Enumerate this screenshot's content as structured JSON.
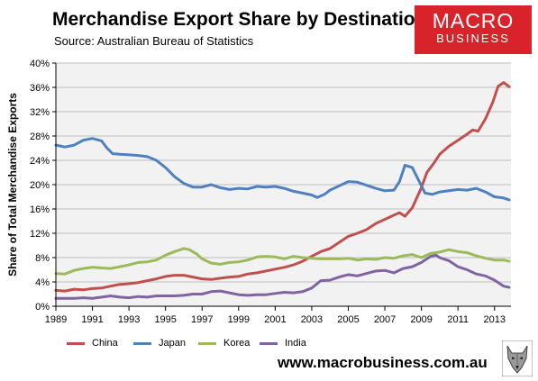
{
  "header": {
    "title": "Merchandise Export Share by Destination",
    "subtitle": "Source: Australian Bureau of Statistics"
  },
  "logo": {
    "line1": "MACRO",
    "line2": "BUSINESS"
  },
  "footer": {
    "website": "www.macrobusiness.com.au"
  },
  "colors": {
    "China": "#c0504d",
    "Japan": "#4f81bd",
    "Korea": "#9bbb59",
    "India": "#8064a2",
    "plot_bg": "#f2f2f2",
    "logo_bg": "#d8232a"
  },
  "chart_data": {
    "type": "line",
    "title": "Merchandise Export Share by Destination",
    "ylabel": "Share of Total Merchandise Exports",
    "xlabel": "",
    "xlim": [
      1989,
      2013.9
    ],
    "ylim": [
      0,
      40
    ],
    "y_ticks": [
      0,
      4,
      8,
      12,
      16,
      20,
      24,
      28,
      32,
      36,
      40
    ],
    "y_tick_labels": [
      "0%",
      "4%",
      "8%",
      "12%",
      "16%",
      "20%",
      "24%",
      "28%",
      "32%",
      "36%",
      "40%"
    ],
    "x_ticks": [
      1989,
      1991,
      1993,
      1995,
      1997,
      1999,
      2001,
      2003,
      2005,
      2007,
      2009,
      2011,
      2013
    ],
    "x_tick_labels": [
      "1989",
      "1991",
      "1993",
      "1995",
      "1997",
      "1999",
      "2001",
      "2003",
      "2005",
      "2007",
      "2009",
      "2011",
      "2013"
    ],
    "grid": "horizontal",
    "legend": "bottom",
    "series": [
      {
        "name": "China",
        "points": [
          [
            1989,
            2.6
          ],
          [
            1989.5,
            2.5
          ],
          [
            1990,
            2.8
          ],
          [
            1990.5,
            2.7
          ],
          [
            1991,
            2.9
          ],
          [
            1991.5,
            3.0
          ],
          [
            1992,
            3.3
          ],
          [
            1992.5,
            3.6
          ],
          [
            1993,
            3.7
          ],
          [
            1993.5,
            3.9
          ],
          [
            1994,
            4.2
          ],
          [
            1994.5,
            4.5
          ],
          [
            1995,
            4.9
          ],
          [
            1995.5,
            5.1
          ],
          [
            1996,
            5.1
          ],
          [
            1996.5,
            4.8
          ],
          [
            1997,
            4.5
          ],
          [
            1997.5,
            4.4
          ],
          [
            1998,
            4.6
          ],
          [
            1998.5,
            4.8
          ],
          [
            1999,
            4.9
          ],
          [
            1999.5,
            5.3
          ],
          [
            2000,
            5.5
          ],
          [
            2000.5,
            5.8
          ],
          [
            2001,
            6.1
          ],
          [
            2001.5,
            6.4
          ],
          [
            2002,
            6.8
          ],
          [
            2002.5,
            7.4
          ],
          [
            2003,
            8.2
          ],
          [
            2003.5,
            9.0
          ],
          [
            2004,
            9.5
          ],
          [
            2004.5,
            10.5
          ],
          [
            2005,
            11.5
          ],
          [
            2005.5,
            12.0
          ],
          [
            2006,
            12.6
          ],
          [
            2006.5,
            13.6
          ],
          [
            2007,
            14.3
          ],
          [
            2007.5,
            15.0
          ],
          [
            2007.8,
            15.4
          ],
          [
            2008.1,
            14.8
          ],
          [
            2008.5,
            16.2
          ],
          [
            2009,
            19.5
          ],
          [
            2009.3,
            22.0
          ],
          [
            2009.7,
            23.6
          ],
          [
            2010,
            25.0
          ],
          [
            2010.5,
            26.3
          ],
          [
            2011,
            27.3
          ],
          [
            2011.5,
            28.3
          ],
          [
            2011.8,
            29.0
          ],
          [
            2012.1,
            28.8
          ],
          [
            2012.5,
            30.8
          ],
          [
            2012.9,
            33.5
          ],
          [
            2013.2,
            36.2
          ],
          [
            2013.5,
            36.8
          ],
          [
            2013.8,
            36.1
          ]
        ]
      },
      {
        "name": "Japan",
        "points": [
          [
            1989,
            26.5
          ],
          [
            1989.5,
            26.2
          ],
          [
            1990,
            26.5
          ],
          [
            1990.5,
            27.3
          ],
          [
            1991,
            27.6
          ],
          [
            1991.5,
            27.2
          ],
          [
            1991.8,
            26.0
          ],
          [
            1992.1,
            25.1
          ],
          [
            1992.5,
            25.0
          ],
          [
            1993,
            24.9
          ],
          [
            1993.5,
            24.8
          ],
          [
            1994,
            24.6
          ],
          [
            1994.5,
            24.0
          ],
          [
            1995,
            22.8
          ],
          [
            1995.5,
            21.3
          ],
          [
            1996,
            20.2
          ],
          [
            1996.5,
            19.6
          ],
          [
            1997,
            19.6
          ],
          [
            1997.5,
            20.0
          ],
          [
            1998,
            19.5
          ],
          [
            1998.5,
            19.2
          ],
          [
            1999,
            19.4
          ],
          [
            1999.5,
            19.3
          ],
          [
            2000,
            19.7
          ],
          [
            2000.5,
            19.6
          ],
          [
            2001,
            19.7
          ],
          [
            2001.5,
            19.4
          ],
          [
            2002,
            18.9
          ],
          [
            2002.5,
            18.6
          ],
          [
            2003,
            18.3
          ],
          [
            2003.3,
            17.9
          ],
          [
            2003.7,
            18.4
          ],
          [
            2004,
            19.1
          ],
          [
            2004.5,
            19.8
          ],
          [
            2005,
            20.5
          ],
          [
            2005.5,
            20.4
          ],
          [
            2006,
            19.9
          ],
          [
            2006.5,
            19.4
          ],
          [
            2007,
            19.0
          ],
          [
            2007.5,
            19.1
          ],
          [
            2007.8,
            20.5
          ],
          [
            2008.1,
            23.2
          ],
          [
            2008.5,
            22.8
          ],
          [
            2008.8,
            21.0
          ],
          [
            2009,
            19.8
          ],
          [
            2009.2,
            18.6
          ],
          [
            2009.6,
            18.4
          ],
          [
            2010,
            18.8
          ],
          [
            2010.5,
            19.0
          ],
          [
            2011,
            19.2
          ],
          [
            2011.5,
            19.1
          ],
          [
            2012,
            19.4
          ],
          [
            2012.5,
            18.8
          ],
          [
            2013,
            18.0
          ],
          [
            2013.5,
            17.8
          ],
          [
            2013.8,
            17.5
          ]
        ]
      },
      {
        "name": "Korea",
        "points": [
          [
            1989,
            5.4
          ],
          [
            1989.5,
            5.3
          ],
          [
            1990,
            5.9
          ],
          [
            1990.5,
            6.2
          ],
          [
            1991,
            6.4
          ],
          [
            1991.5,
            6.3
          ],
          [
            1992,
            6.2
          ],
          [
            1992.5,
            6.5
          ],
          [
            1993,
            6.8
          ],
          [
            1993.5,
            7.2
          ],
          [
            1994,
            7.3
          ],
          [
            1994.5,
            7.6
          ],
          [
            1995,
            8.4
          ],
          [
            1995.5,
            9.0
          ],
          [
            1996,
            9.5
          ],
          [
            1996.3,
            9.3
          ],
          [
            1996.7,
            8.6
          ],
          [
            1997,
            7.8
          ],
          [
            1997.5,
            7.1
          ],
          [
            1998,
            6.9
          ],
          [
            1998.5,
            7.2
          ],
          [
            1999,
            7.3
          ],
          [
            1999.5,
            7.6
          ],
          [
            2000,
            8.1
          ],
          [
            2000.5,
            8.2
          ],
          [
            2001,
            8.1
          ],
          [
            2001.5,
            7.8
          ],
          [
            2002,
            8.2
          ],
          [
            2002.5,
            8.0
          ],
          [
            2003,
            7.9
          ],
          [
            2003.5,
            7.8
          ],
          [
            2004,
            7.8
          ],
          [
            2004.5,
            7.8
          ],
          [
            2005,
            7.9
          ],
          [
            2005.5,
            7.6
          ],
          [
            2006,
            7.8
          ],
          [
            2006.5,
            7.7
          ],
          [
            2007,
            8.0
          ],
          [
            2007.5,
            7.9
          ],
          [
            2008,
            8.3
          ],
          [
            2008.5,
            8.5
          ],
          [
            2009,
            8.0
          ],
          [
            2009.5,
            8.7
          ],
          [
            2010,
            8.9
          ],
          [
            2010.5,
            9.3
          ],
          [
            2011,
            9.0
          ],
          [
            2011.5,
            8.8
          ],
          [
            2012,
            8.3
          ],
          [
            2012.5,
            7.9
          ],
          [
            2013,
            7.6
          ],
          [
            2013.5,
            7.6
          ],
          [
            2013.8,
            7.4
          ]
        ]
      },
      {
        "name": "India",
        "points": [
          [
            1989,
            1.3
          ],
          [
            1989.5,
            1.3
          ],
          [
            1990,
            1.3
          ],
          [
            1990.5,
            1.4
          ],
          [
            1991,
            1.3
          ],
          [
            1991.5,
            1.5
          ],
          [
            1992,
            1.7
          ],
          [
            1992.5,
            1.5
          ],
          [
            1993,
            1.4
          ],
          [
            1993.5,
            1.6
          ],
          [
            1994,
            1.5
          ],
          [
            1994.5,
            1.7
          ],
          [
            1995,
            1.7
          ],
          [
            1995.5,
            1.7
          ],
          [
            1996,
            1.8
          ],
          [
            1996.5,
            2.0
          ],
          [
            1997,
            2.0
          ],
          [
            1997.5,
            2.4
          ],
          [
            1998,
            2.5
          ],
          [
            1998.5,
            2.2
          ],
          [
            1999,
            1.9
          ],
          [
            1999.5,
            1.8
          ],
          [
            2000,
            1.9
          ],
          [
            2000.5,
            1.9
          ],
          [
            2001,
            2.1
          ],
          [
            2001.5,
            2.3
          ],
          [
            2002,
            2.2
          ],
          [
            2002.5,
            2.4
          ],
          [
            2003,
            3.0
          ],
          [
            2003.5,
            4.2
          ],
          [
            2004,
            4.3
          ],
          [
            2004.5,
            4.8
          ],
          [
            2005,
            5.2
          ],
          [
            2005.5,
            5.0
          ],
          [
            2006,
            5.4
          ],
          [
            2006.5,
            5.8
          ],
          [
            2007,
            5.9
          ],
          [
            2007.5,
            5.5
          ],
          [
            2008,
            6.2
          ],
          [
            2008.5,
            6.5
          ],
          [
            2009,
            7.2
          ],
          [
            2009.5,
            8.2
          ],
          [
            2009.8,
            8.4
          ],
          [
            2010,
            8.0
          ],
          [
            2010.5,
            7.5
          ],
          [
            2011,
            6.5
          ],
          [
            2011.5,
            6.0
          ],
          [
            2012,
            5.3
          ],
          [
            2012.5,
            5.0
          ],
          [
            2013,
            4.3
          ],
          [
            2013.5,
            3.3
          ],
          [
            2013.8,
            3.1
          ]
        ]
      }
    ]
  }
}
